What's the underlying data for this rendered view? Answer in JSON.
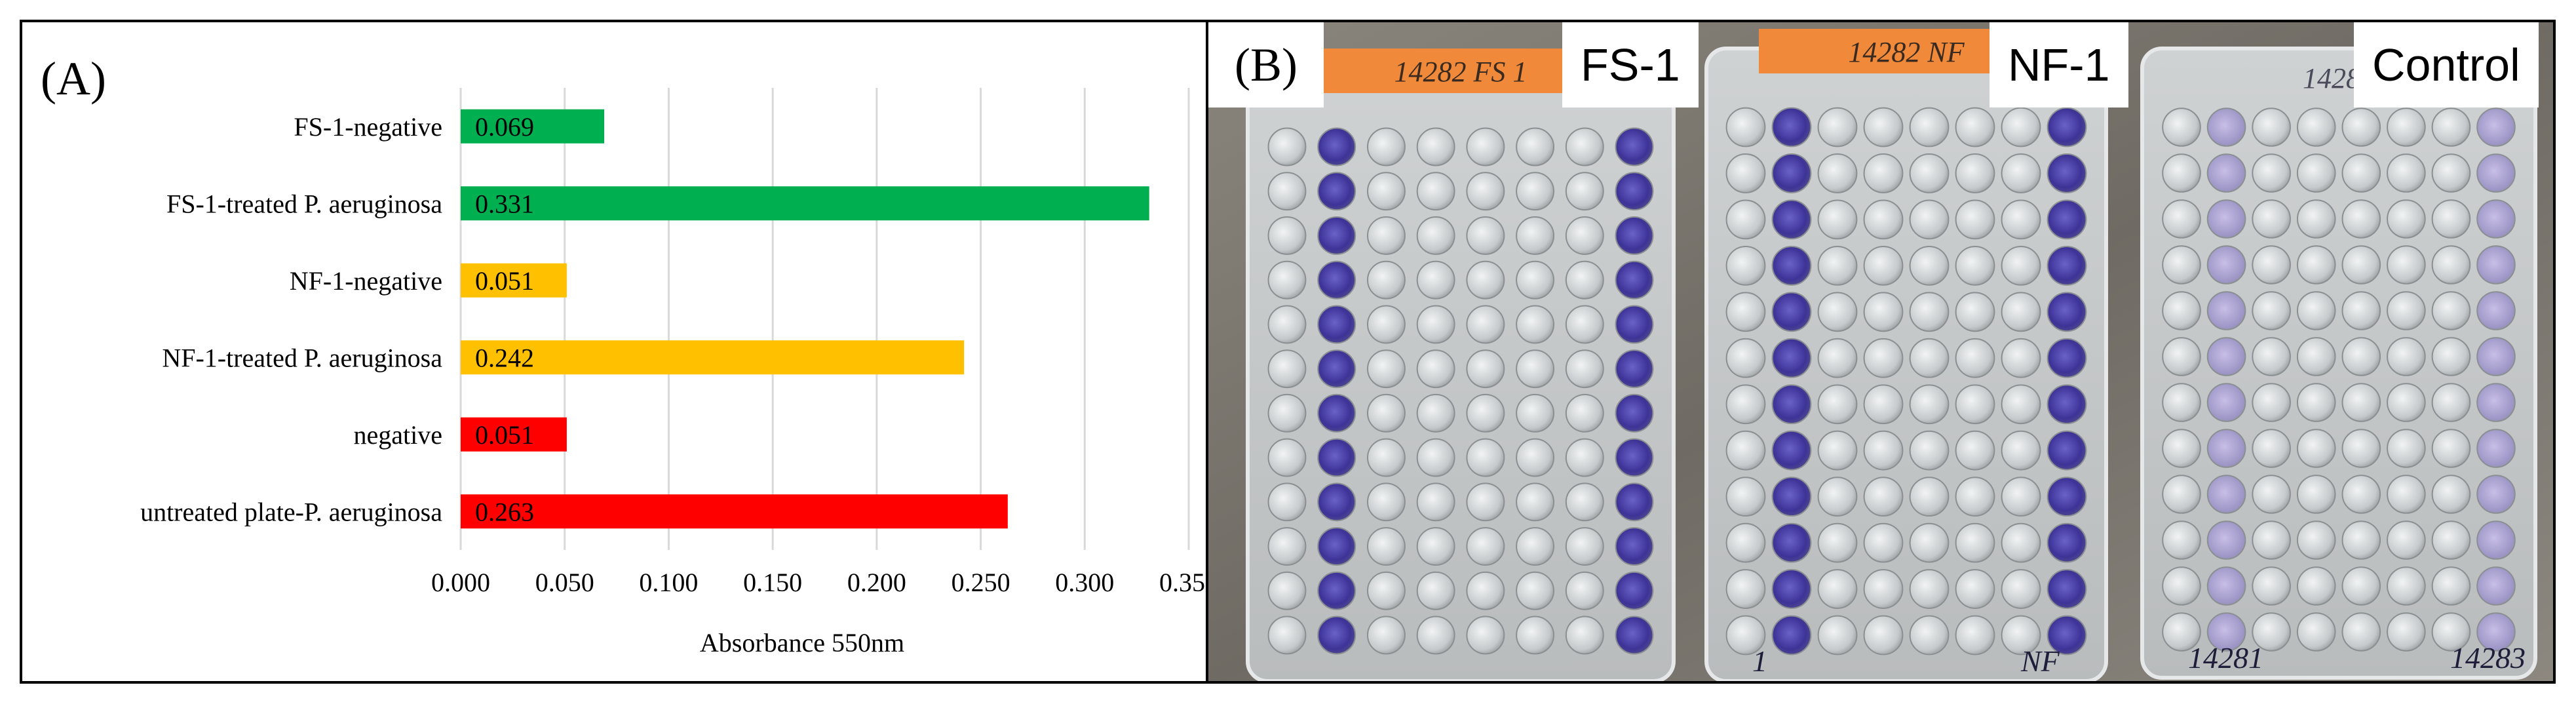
{
  "panel_a": {
    "letter": "(A)",
    "chart_data": {
      "type": "bar",
      "orientation": "horizontal",
      "categories": [
        "FS-1-negative",
        "FS-1-treated P. aeruginosa",
        "NF-1-negative",
        "NF-1-treated P. aeruginosa",
        "negative",
        "untreated plate-P. aeruginosa"
      ],
      "values": [
        0.069,
        0.331,
        0.051,
        0.242,
        0.051,
        0.263
      ],
      "value_labels": [
        "0.069",
        "0.331",
        "0.051",
        "0.242",
        "0.051",
        "0.263"
      ],
      "bar_colors": [
        "#00b050",
        "#00b050",
        "#ffc000",
        "#ffc000",
        "#ff0000",
        "#ff0000"
      ],
      "xlabel": "Absorbance 550nm",
      "xlim": [
        0,
        0.35
      ],
      "xticks": [
        0,
        0.05,
        0.1,
        0.15,
        0.2,
        0.25,
        0.3,
        0.35
      ],
      "xtick_labels": [
        "0.000",
        "0.050",
        "0.100",
        "0.150",
        "0.200",
        "0.250",
        "0.300",
        "0.350"
      ],
      "grid": "vertical"
    }
  },
  "panel_b": {
    "letter": "(B)",
    "labels": [
      "FS-1",
      "NF-1",
      "Control"
    ],
    "plate_writing": [
      "14282 FS 1",
      "14282 NF",
      "14282",
      "1",
      "NF",
      "14281",
      "14283"
    ]
  },
  "colors": {
    "frame": "#000000",
    "grid": "#d9d9d9",
    "photo_bg": "#7e7b74"
  }
}
